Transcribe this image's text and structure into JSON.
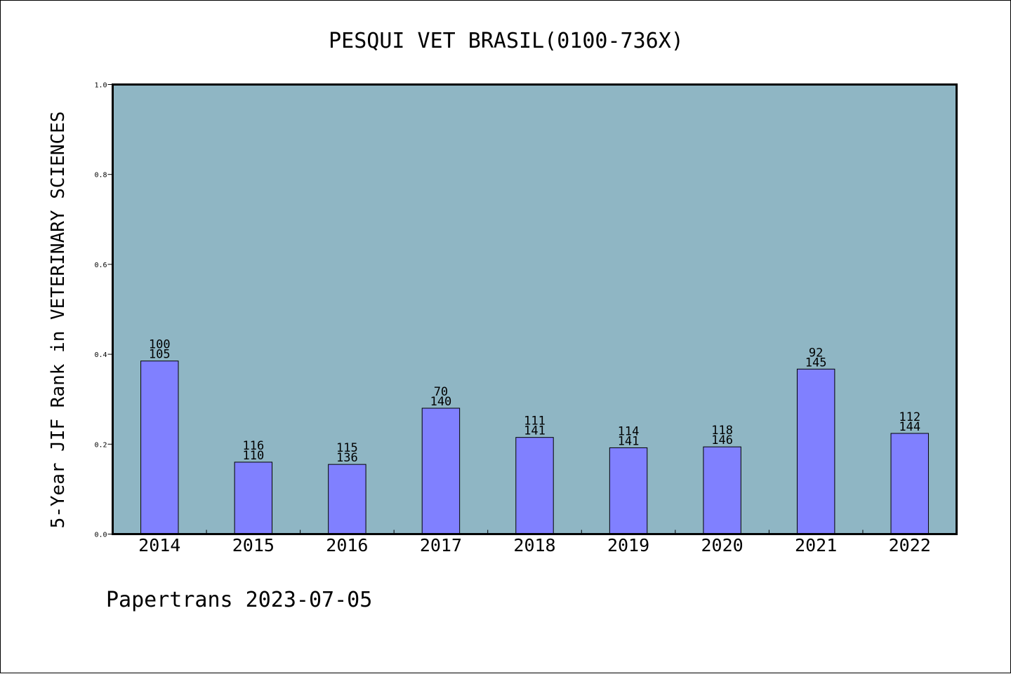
{
  "chart_data": {
    "type": "bar",
    "title": "PESQUI VET BRASIL(0100-736X)",
    "xlabel": "",
    "ylabel": "5-Year JIF Rank in VETERINARY SCIENCES",
    "ylim": [
      0,
      1.0
    ],
    "yticks": [
      "0.0",
      "0.2",
      "0.4",
      "0.6",
      "0.8",
      "1.0"
    ],
    "categories": [
      "2014",
      "2015",
      "2016",
      "2017",
      "2018",
      "2019",
      "2020",
      "2021",
      "2022"
    ],
    "values": [
      0.385,
      0.16,
      0.155,
      0.28,
      0.215,
      0.192,
      0.194,
      0.367,
      0.224
    ],
    "labels_top": [
      "100",
      "116",
      "115",
      "70",
      "111",
      "114",
      "118",
      "92",
      "112"
    ],
    "labels_bottom": [
      "105",
      "110",
      "136",
      "140",
      "141",
      "141",
      "146",
      "145",
      "144"
    ],
    "grid": false,
    "legend": "none"
  },
  "footer": "Papertrans 2023-07-05",
  "colors": {
    "plot_background": "#8fb6c4",
    "bar_fill": "#8080ff",
    "bar_stroke": "#000000"
  }
}
